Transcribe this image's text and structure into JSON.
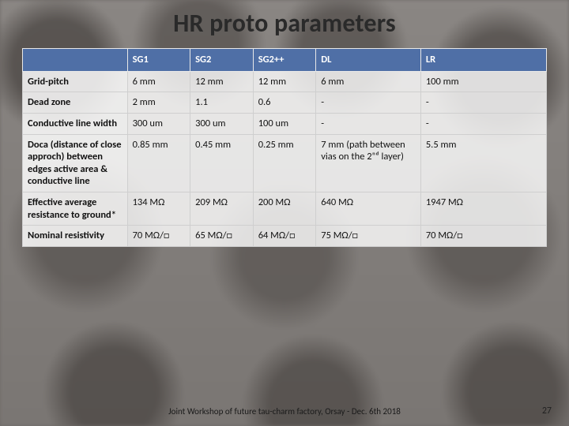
{
  "title": "HR proto parameters",
  "footer": "Joint Workshop of future tau-charm factory, Orsay  - Dec. 6th 2018",
  "page_number": "27",
  "table": {
    "columns": [
      "",
      "SG1",
      "SG2",
      "SG2++",
      "DL",
      "LR"
    ],
    "col_widths_percent": [
      20,
      12,
      12,
      12,
      20,
      14
    ],
    "header_bg": "#4f6fa6",
    "header_fg": "#ffffff",
    "cell_bg": "#ffffff",
    "border_color": "#cfcfcf",
    "font_size_pt": 12.5,
    "rows": [
      {
        "label": "Grid-pitch",
        "cells": [
          "6 mm",
          "12 mm",
          "12 mm",
          "6 mm",
          "100 mm"
        ]
      },
      {
        "label": "Dead zone",
        "cells": [
          "2 mm",
          "1.1",
          "0.6",
          "-",
          "-"
        ]
      },
      {
        "label": "Conductive line width",
        "cells": [
          "300 um",
          "300 um",
          "100 um",
          "-",
          "-"
        ]
      },
      {
        "label": "Doca (distance of close approch) between edges active area & conductive line",
        "cells": [
          "0.85 mm",
          "0.45 mm",
          "0.25 mm",
          "7 mm (path between vias on the 2ⁿᵈ layer)",
          "5.5 mm"
        ]
      },
      {
        "label": "Effective average resistance to ground*",
        "cells": [
          "134 MΩ",
          "209 MΩ",
          "200 MΩ",
          "640 MΩ",
          "1947 MΩ"
        ]
      },
      {
        "label": "Nominal resistivity",
        "cells": [
          "70 MΩ/□",
          "65 MΩ/□",
          "64 MΩ/□",
          "75 MΩ/□",
          "70 MΩ/□"
        ]
      }
    ]
  }
}
